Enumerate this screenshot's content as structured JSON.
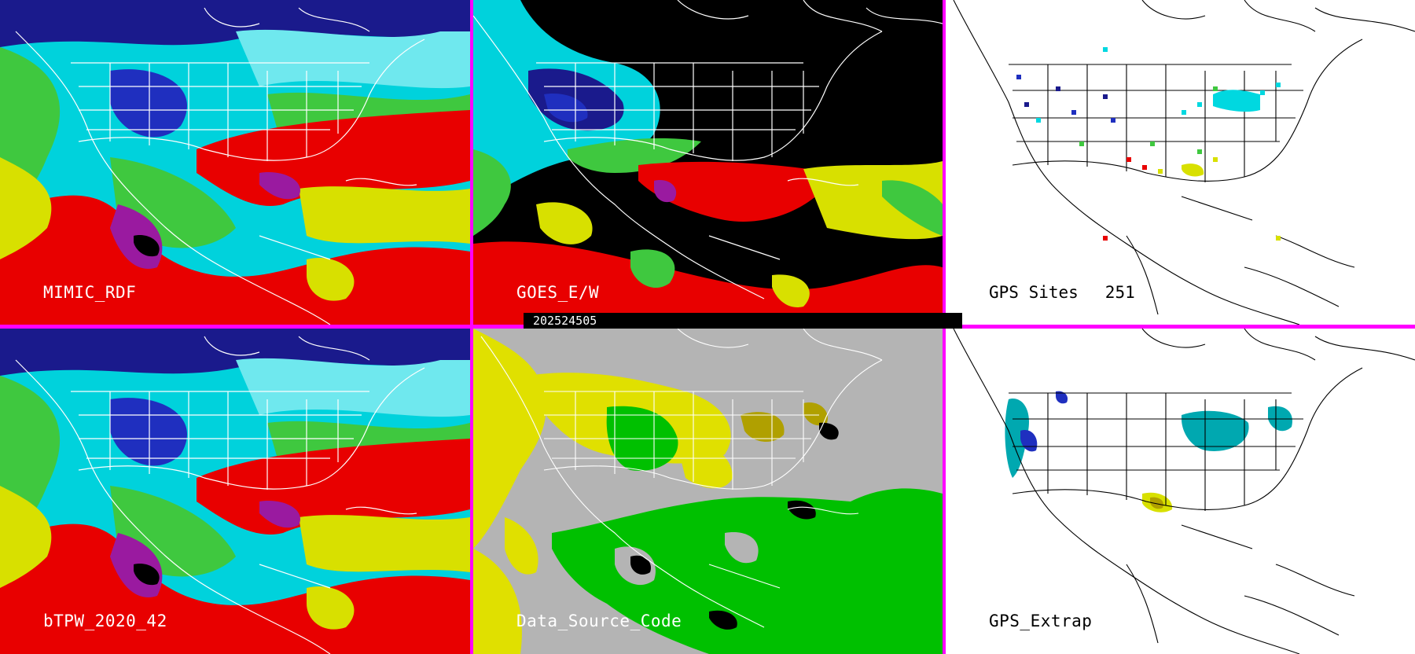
{
  "panels": {
    "top_left": {
      "label": "MIMIC_RDF"
    },
    "top_middle": {
      "label": "GOES_E/W"
    },
    "top_right": {
      "label": "GPS Sites",
      "count": "251"
    },
    "bottom_left": {
      "label": "bTPW_2020_42"
    },
    "bottom_middle": {
      "label": "Data_Source_Code"
    },
    "bottom_right": {
      "label": "GPS_Extrap"
    }
  },
  "timestamp": "202524505",
  "colors": {
    "separator": "#ff00ff",
    "tpw_scale": [
      "#1a1a8c",
      "#1f2fbf",
      "#00d8e0",
      "#6fe8ee",
      "#3fc83f",
      "#d8e000",
      "#e80000",
      "#9a1aa0"
    ],
    "source_codes": {
      "gps": "#e0e000",
      "goes": "#00c000",
      "mimic": "#b4b4b4",
      "olive": "#b0a000"
    },
    "map_lines_on_dark": "#ffffff",
    "map_lines_on_light": "#000000"
  }
}
